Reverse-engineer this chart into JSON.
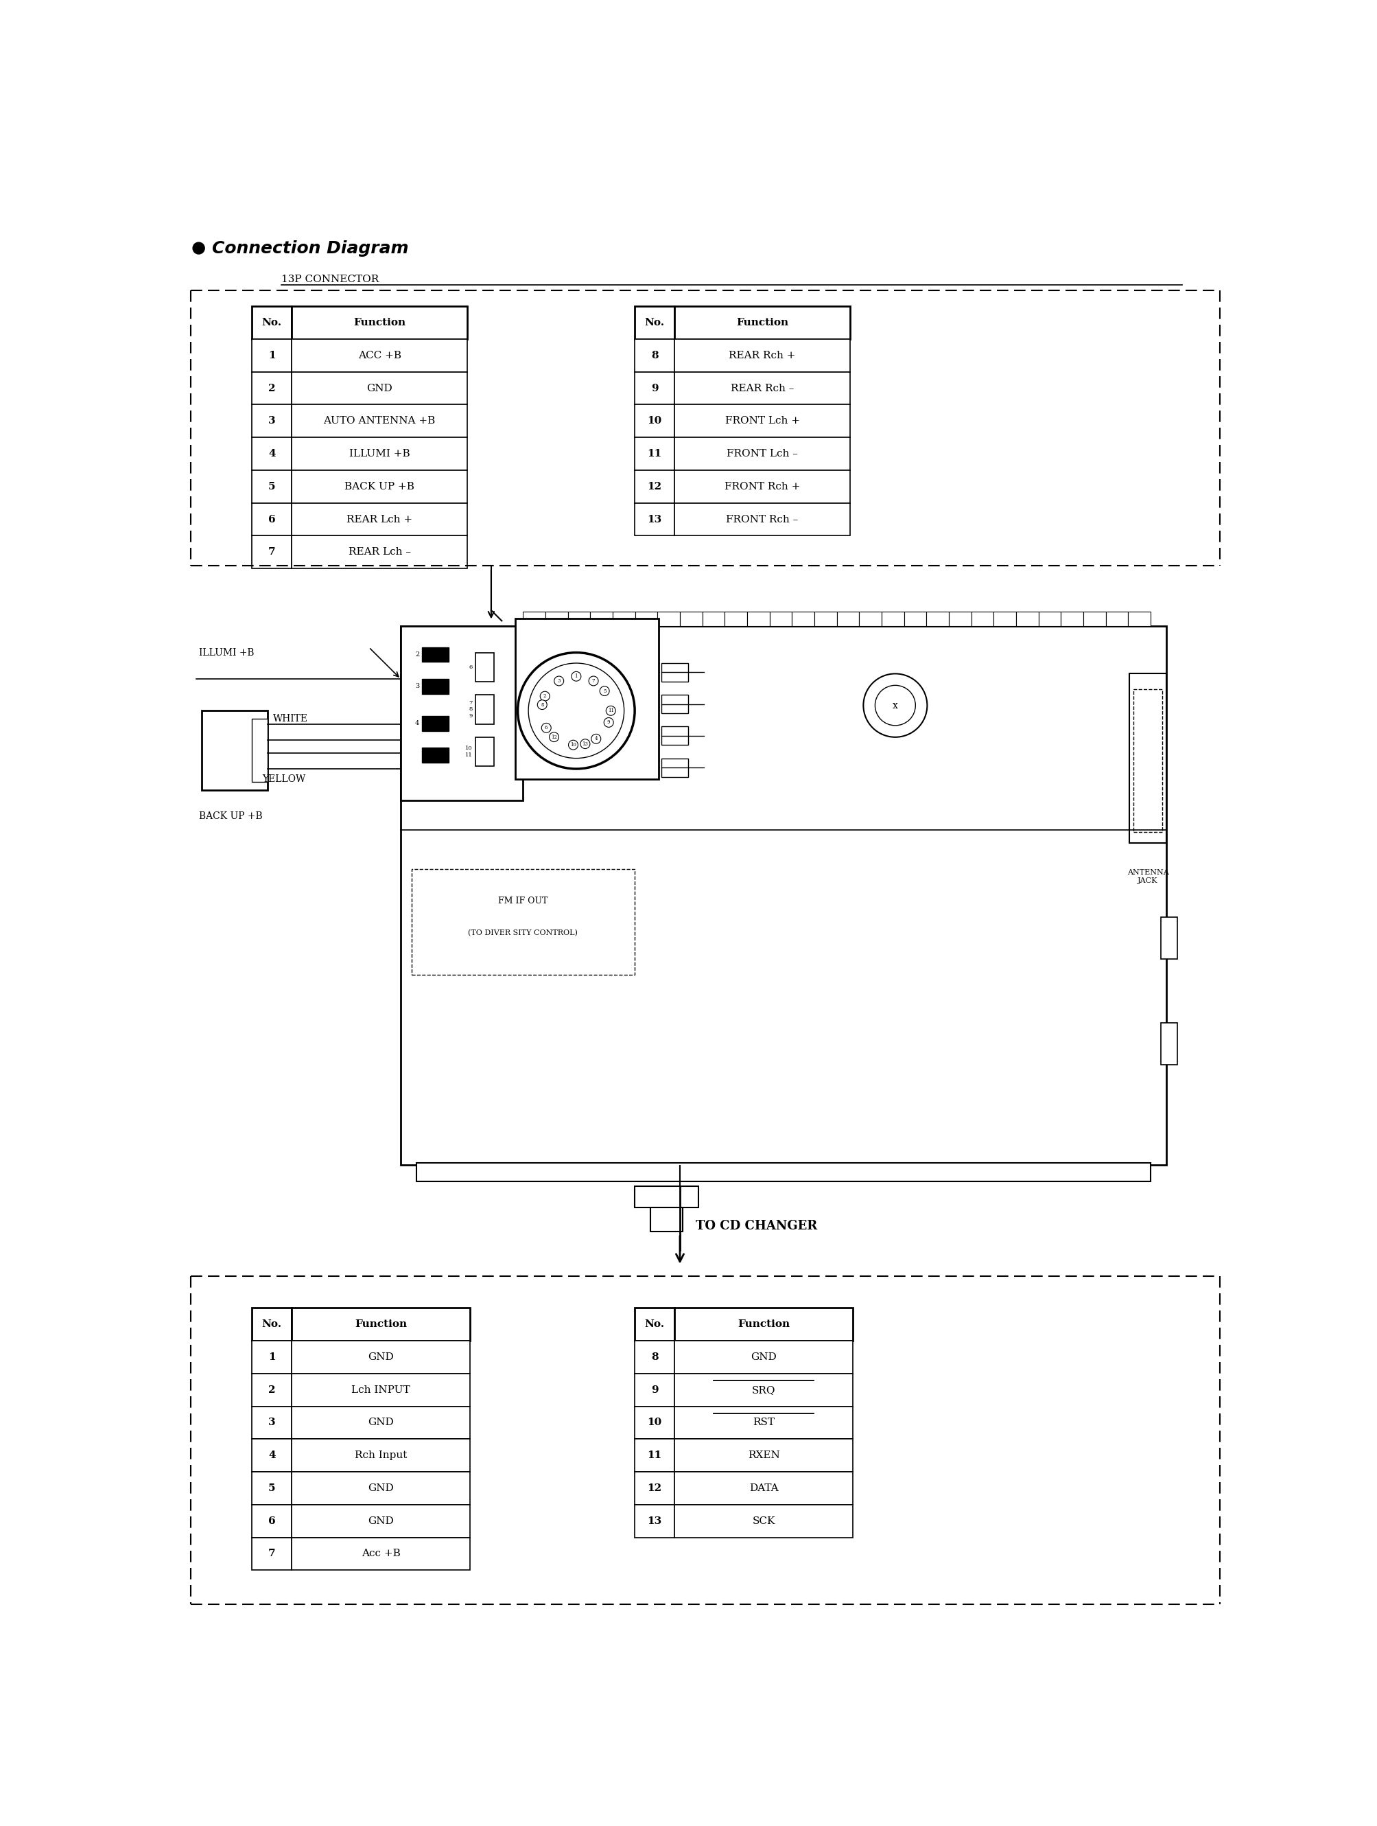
{
  "title": "Connection Diagram",
  "connector_label": "13P CONNECTOR",
  "table1_left": {
    "headers": [
      "No.",
      "Function"
    ],
    "rows": [
      [
        "1",
        "ACC +B"
      ],
      [
        "2",
        "GND"
      ],
      [
        "3",
        "AUTO ANTENNA +B"
      ],
      [
        "4",
        "ILLUMI +B"
      ],
      [
        "5",
        "BACK UP +B"
      ],
      [
        "6",
        "REAR Lch +"
      ],
      [
        "7",
        "REAR Lch –"
      ]
    ]
  },
  "table1_right": {
    "headers": [
      "No.",
      "Function"
    ],
    "rows": [
      [
        "8",
        "REAR Rch +"
      ],
      [
        "9",
        "REAR Rch –"
      ],
      [
        "10",
        "FRONT Lch +"
      ],
      [
        "11",
        "FRONT Lch –"
      ],
      [
        "12",
        "FRONT Rch +"
      ],
      [
        "13",
        "FRONT Rch –"
      ]
    ]
  },
  "table2_left": {
    "headers": [
      "No.",
      "Function"
    ],
    "rows": [
      [
        "1",
        "GND"
      ],
      [
        "2",
        "Lch INPUT"
      ],
      [
        "3",
        "GND"
      ],
      [
        "4",
        "Rch Input"
      ],
      [
        "5",
        "GND"
      ],
      [
        "6",
        "GND"
      ],
      [
        "7",
        "Acc +B"
      ]
    ]
  },
  "table2_right": {
    "headers": [
      "No.",
      "Function"
    ],
    "rows": [
      [
        "8",
        "GND"
      ],
      [
        "9",
        "SRQ"
      ],
      [
        "10",
        "RST"
      ],
      [
        "11",
        "RXEN"
      ],
      [
        "12",
        "DATA"
      ],
      [
        "13",
        "SCK"
      ]
    ],
    "overline": [
      false,
      true,
      true,
      false,
      false,
      false
    ]
  },
  "labels": {
    "illumi": "ILLUMI +B",
    "white": "WHITE",
    "yellow": "YELLOW",
    "backup": "BACK UP +B",
    "antenna_jack": "ANTENNA\nJACK",
    "fm_if_out": "FM IF OUT",
    "diversity": "(TO DIVER SITY CONTROL)",
    "cd_changer": "TO CD CHANGER"
  },
  "bg_color": "#ffffff",
  "line_color": "#000000",
  "text_color": "#000000"
}
